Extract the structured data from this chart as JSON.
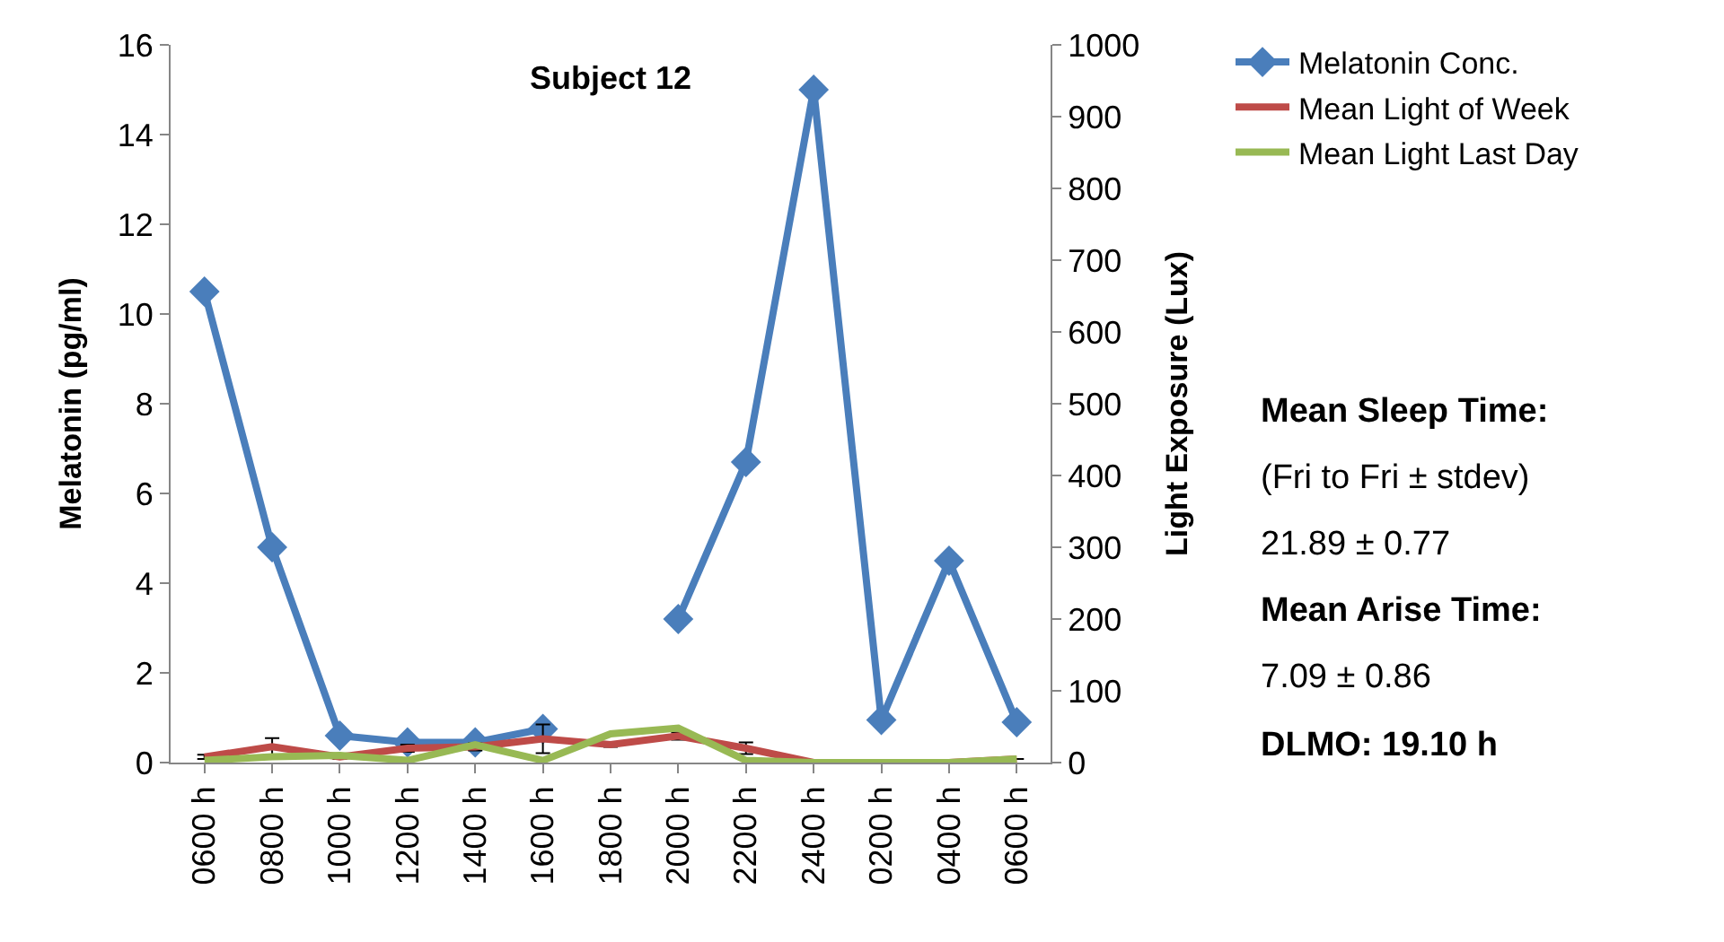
{
  "chart_data": {
    "type": "line",
    "title": "Subject 12",
    "ylabel": "Melatonin (pg/ml)",
    "y2label": "Light Exposure (Lux)",
    "categories": [
      "0600 h",
      "0800 h",
      "1000 h",
      "1200 h",
      "1400 h",
      "1600 h",
      "1800 h",
      "2000 h",
      "2200 h",
      "2400 h",
      "0200 h",
      "0400 h",
      "0600 h"
    ],
    "series": [
      {
        "name": "Melatonin Conc.",
        "color": "#4a7ebb",
        "marker": "diamond",
        "values": [
          10.5,
          4.8,
          0.6,
          0.45,
          0.45,
          0.75,
          null,
          3.2,
          6.7,
          15,
          0.95,
          4.5,
          0.9
        ]
      },
      {
        "name": "Mean Light of Week",
        "color": "#be4b48",
        "axis": "y2",
        "marker": "none",
        "values": [
          8,
          22,
          8,
          20,
          22,
          33,
          25,
          37,
          20,
          0,
          0,
          0,
          5
        ],
        "errors": [
          3,
          12,
          3,
          5,
          5,
          20,
          3,
          5,
          8,
          null,
          null,
          null,
          null
        ]
      },
      {
        "name": "Mean Light Last Day",
        "color": "#98b954",
        "axis": "y2",
        "marker": "none",
        "values": [
          3,
          8,
          10,
          3,
          25,
          3,
          40,
          48,
          3,
          0,
          0,
          0,
          5
        ]
      }
    ],
    "ylim": [
      0,
      16
    ],
    "yticks": [
      0,
      2,
      4,
      6,
      8,
      10,
      12,
      14,
      16
    ],
    "y2lim": [
      0,
      1000
    ],
    "y2ticks": [
      0,
      100,
      200,
      300,
      400,
      500,
      600,
      700,
      800,
      900,
      1000
    ],
    "legend": "top right",
    "line_style": "solid",
    "annotations": [
      "Mean Sleep Time:",
      "(Fri to Fri ± stdev)",
      "21.89 ± 0.77",
      "Mean Arise Time:",
      "7.09 ± 0.86",
      "DLMO: 19.10 h"
    ]
  }
}
